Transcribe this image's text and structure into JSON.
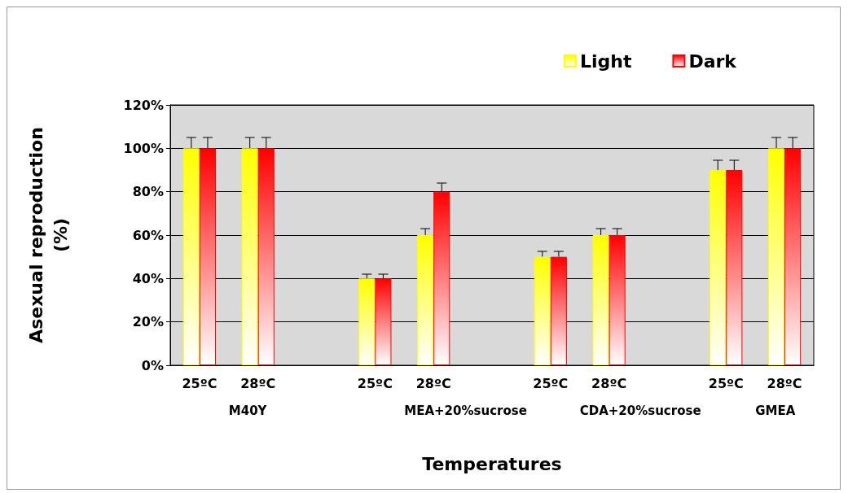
{
  "chart_data": {
    "type": "bar",
    "xlabel": "Temperatures",
    "ylabel": "Asexual reproduction\n(%)",
    "categories": [
      "25ºC",
      "28ºC",
      null,
      "25ºC",
      "28ºC",
      null,
      "25ºC",
      "28ºC",
      null,
      "25ºC",
      "28ºC"
    ],
    "series": [
      {
        "name": "Light",
        "color": "#ffff00",
        "values": [
          100,
          100,
          null,
          40,
          60,
          null,
          50,
          60,
          null,
          90,
          100
        ],
        "errors": [
          5,
          5,
          null,
          2,
          3,
          null,
          2.5,
          3,
          null,
          4.5,
          5
        ]
      },
      {
        "name": "Dark",
        "color": "#ff0000",
        "values": [
          100,
          100,
          null,
          40,
          80,
          null,
          50,
          60,
          null,
          90,
          100
        ],
        "errors": [
          5,
          5,
          null,
          2,
          4,
          null,
          2.5,
          3,
          null,
          4.5,
          5
        ]
      }
    ],
    "annotations": [
      "M40Y",
      "MEA+20%sucrose",
      "CDA+20%sucrose",
      "GMEA"
    ],
    "ylim": [
      0,
      120
    ],
    "yticks": [
      {
        "value": 0,
        "label": "0%"
      },
      {
        "value": 20,
        "label": "20%"
      },
      {
        "value": 40,
        "label": "40%"
      },
      {
        "value": 60,
        "label": "60%"
      },
      {
        "value": 80,
        "label": "80%"
      },
      {
        "value": 100,
        "label": "100%"
      },
      {
        "value": 120,
        "label": "120%"
      }
    ],
    "grid": "y",
    "legend": "top right"
  }
}
